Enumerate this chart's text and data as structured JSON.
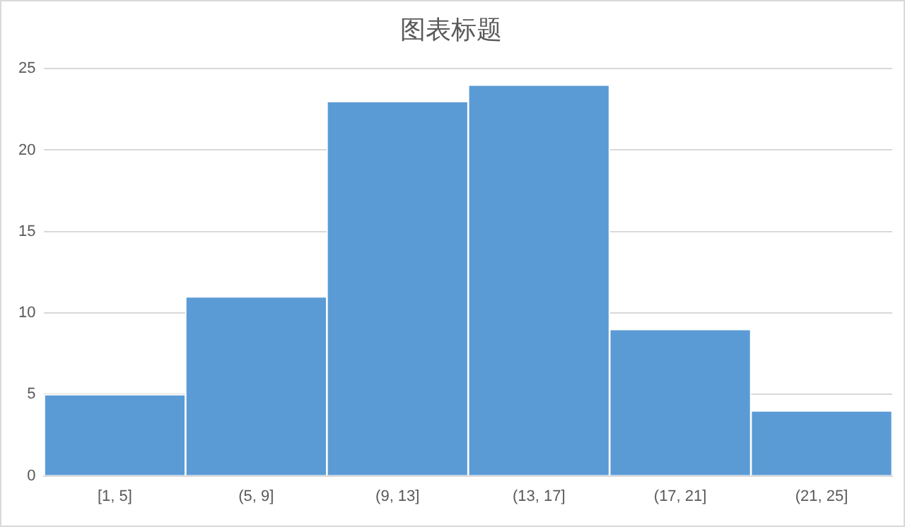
{
  "chart_data": {
    "type": "bar",
    "title": "图表标题",
    "categories": [
      "[1, 5]",
      "(5, 9]",
      "(9, 13]",
      "(13, 17]",
      "(17, 21]",
      "(21, 25]"
    ],
    "values": [
      5,
      11,
      23,
      24,
      9,
      4
    ],
    "color": "#5b9bd5",
    "ylim": [
      0,
      25
    ],
    "yticks": [
      0,
      5,
      10,
      15,
      20,
      25
    ],
    "grid": "y"
  }
}
